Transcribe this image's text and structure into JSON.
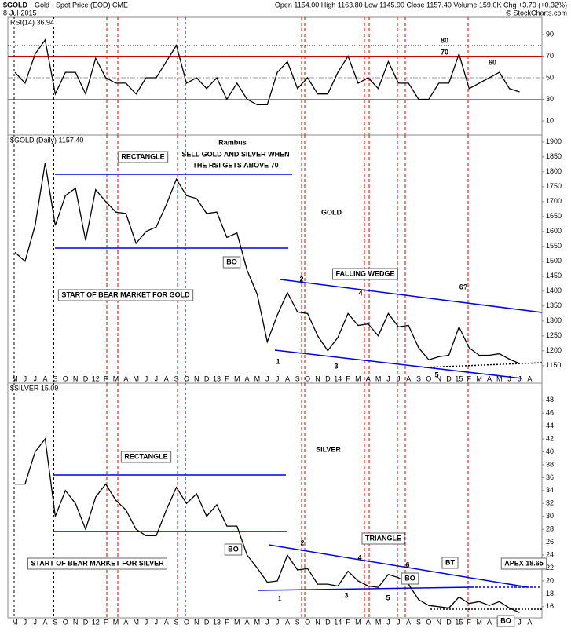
{
  "header": {
    "symbol": "$GOLD",
    "description": "Gold - Spot Price (EOD) CME",
    "date": "8-Jul-2015",
    "quote": "Open 1154.00 High 1163.80 Low 1145.90 Close 1157.40 Volume 159.0K Chg +3.70 (+0.32%)",
    "credit": "© StockCharts.com"
  },
  "chart_data": [
    {
      "type": "line",
      "title": "RSI(14) 36.94",
      "categories": [
        "M",
        "J",
        "J",
        "A",
        "S",
        "O",
        "N",
        "D",
        "12",
        "F",
        "M",
        "A",
        "M",
        "J",
        "J",
        "A",
        "S",
        "O",
        "N",
        "D",
        "13",
        "F",
        "M",
        "A",
        "M",
        "J",
        "J",
        "A",
        "S",
        "O",
        "N",
        "D",
        "14",
        "F",
        "M",
        "A",
        "M",
        "J",
        "J",
        "A",
        "S",
        "O",
        "N",
        "D",
        "15",
        "F",
        "M",
        "A",
        "M",
        "J",
        "J",
        "A"
      ],
      "values": [
        55,
        45,
        72,
        85,
        35,
        55,
        55,
        35,
        68,
        50,
        45,
        45,
        35,
        50,
        50,
        65,
        80,
        45,
        50,
        40,
        50,
        30,
        45,
        30,
        25,
        25,
        55,
        65,
        40,
        50,
        35,
        35,
        55,
        70,
        45,
        50,
        40,
        65,
        45,
        45,
        30,
        30,
        45,
        45,
        72,
        40,
        45,
        50,
        55,
        40,
        36.94,
        null
      ],
      "color": "#000000",
      "ylim": [
        -1.6,
        106
      ],
      "yticks": [
        10,
        30,
        50,
        70,
        90
      ],
      "annotations": [
        "80",
        "70",
        "60"
      ]
    },
    {
      "type": "line",
      "title": "$GOLD (Daily) 1157.40",
      "categories": [
        "M",
        "J",
        "J",
        "A",
        "S",
        "O",
        "N",
        "D",
        "12",
        "F",
        "M",
        "A",
        "M",
        "J",
        "J",
        "A",
        "S",
        "O",
        "N",
        "D",
        "13",
        "F",
        "M",
        "A",
        "M",
        "J",
        "J",
        "A",
        "S",
        "O",
        "N",
        "D",
        "14",
        "F",
        "M",
        "A",
        "M",
        "J",
        "J",
        "A",
        "S",
        "O",
        "N",
        "D",
        "15",
        "F",
        "M",
        "A",
        "M",
        "J",
        "J",
        "A"
      ],
      "values": [
        1530,
        1500,
        1620,
        1830,
        1620,
        1720,
        1745,
        1570,
        1740,
        1700,
        1665,
        1660,
        1560,
        1600,
        1615,
        1690,
        1775,
        1720,
        1710,
        1660,
        1665,
        1580,
        1595,
        1470,
        1390,
        1230,
        1320,
        1395,
        1330,
        1325,
        1250,
        1200,
        1245,
        1325,
        1285,
        1290,
        1250,
        1325,
        1280,
        1285,
        1210,
        1170,
        1180,
        1185,
        1280,
        1210,
        1185,
        1185,
        1190,
        1172,
        1157.4,
        null
      ],
      "color": "#000000",
      "ylim": [
        1118,
        1918
      ],
      "yticks": [
        1150,
        1200,
        1250,
        1300,
        1350,
        1400,
        1450,
        1500,
        1550,
        1600,
        1650,
        1700,
        1750,
        1800,
        1850,
        1900
      ],
      "annotations": [
        "Rambus",
        "SELL GOLD AND SILVER WHEN",
        "THE RSI GETS ABOVE 70",
        "RECTANGLE",
        "GOLD",
        "BO",
        "START OF BEAR MARKET FOR GOLD",
        "FALLING WEDGE",
        "1",
        "2",
        "3",
        "4",
        "5",
        "6?"
      ]
    },
    {
      "type": "line",
      "title": "$SILVER 15.09",
      "categories": [
        "M",
        "J",
        "J",
        "A",
        "S",
        "O",
        "N",
        "D",
        "12",
        "F",
        "M",
        "A",
        "M",
        "J",
        "J",
        "A",
        "S",
        "O",
        "N",
        "D",
        "13",
        "F",
        "M",
        "A",
        "M",
        "J",
        "J",
        "A",
        "S",
        "O",
        "N",
        "D",
        "14",
        "F",
        "M",
        "A",
        "M",
        "J",
        "J",
        "A",
        "S",
        "O",
        "N",
        "D",
        "15",
        "F",
        "M",
        "A",
        "M",
        "J",
        "J",
        "A"
      ],
      "values": [
        35,
        35,
        40,
        42,
        30,
        34,
        32,
        28,
        33,
        35,
        32.5,
        31,
        28,
        27,
        27,
        31,
        34.5,
        32,
        33.5,
        30,
        31.8,
        28.5,
        28.5,
        24,
        22,
        19.8,
        20,
        24,
        21.7,
        21.9,
        19.5,
        19.5,
        19.2,
        21.5,
        20,
        19.2,
        19,
        21,
        20.5,
        19.5,
        17.1,
        16.2,
        16,
        15.8,
        17.5,
        16.5,
        16.8,
        16.2,
        16.8,
        15.8,
        15.09,
        null
      ],
      "color": "#000000",
      "ylim": [
        14.4,
        50.4
      ],
      "yticks": [
        16,
        18,
        20,
        22,
        24,
        26,
        28,
        30,
        32,
        34,
        36,
        38,
        40,
        42,
        44,
        46,
        48
      ],
      "annotations": [
        "SILVER",
        "RECTANGLE",
        "BO",
        "START OF BEAR MARKET FOR SILVER",
        "TRIANGLE",
        "1",
        "2",
        "3",
        "4",
        "5",
        "6",
        "BO",
        "BT",
        "APEX 18.65",
        "BO"
      ]
    }
  ]
}
